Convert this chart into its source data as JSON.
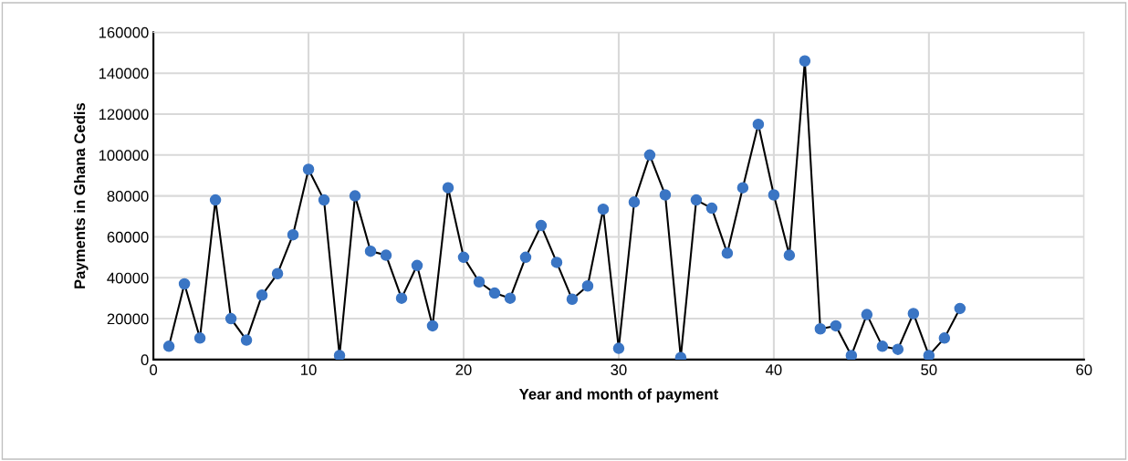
{
  "chart_data": {
    "type": "line",
    "xlabel": "Year and month of payment",
    "ylabel": "Payments in Ghana Cedis",
    "x": [
      1,
      2,
      3,
      4,
      5,
      6,
      7,
      8,
      9,
      10,
      11,
      12,
      13,
      14,
      15,
      16,
      17,
      18,
      19,
      20,
      21,
      22,
      23,
      24,
      25,
      26,
      27,
      28,
      29,
      30,
      31,
      32,
      33,
      34,
      35,
      36,
      37,
      38,
      39,
      40,
      41,
      42,
      43,
      44,
      45,
      46,
      47,
      48,
      49,
      50,
      51,
      52
    ],
    "series": [
      {
        "color": "#3a75c4",
        "values": [
          6500,
          37000,
          10500,
          78000,
          20000,
          9500,
          31500,
          42000,
          61000,
          93000,
          78000,
          2000,
          80000,
          53000,
          51000,
          30000,
          46000,
          16500,
          84000,
          50000,
          38000,
          32500,
          30000,
          50000,
          65500,
          47500,
          29500,
          36000,
          73500,
          5500,
          77000,
          100000,
          80500,
          1000,
          78000,
          74000,
          52000,
          84000,
          115000,
          80500,
          51000,
          146000,
          15000,
          16500,
          2000,
          22000,
          6500,
          5000,
          22500,
          2000,
          10500,
          25000
        ]
      }
    ],
    "xlim": [
      0,
      60
    ],
    "xticks": [
      0,
      10,
      20,
      30,
      40,
      50,
      60
    ],
    "ylim": [
      0,
      160000
    ],
    "yticks": [
      0,
      20000,
      40000,
      60000,
      80000,
      100000,
      120000,
      140000,
      160000
    ],
    "grid": true,
    "marker": "circle",
    "line_style": "solid",
    "legend": false
  }
}
